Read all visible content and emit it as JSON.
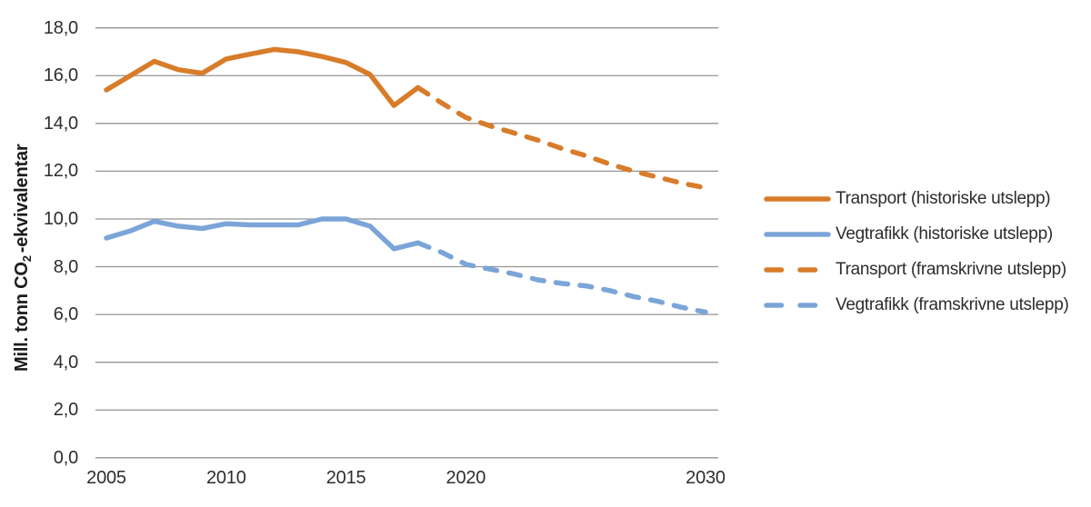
{
  "figure": {
    "background": "#ffffff"
  },
  "colors": {
    "orange": "#d87c2a",
    "blue": "#7ba5d8",
    "grid": "#949494",
    "text": "#2e2d2c"
  },
  "chart_data": {
    "type": "line",
    "title": "",
    "xlabel": "",
    "ylabel": "Mill. tonn CO2 -ekvivalentar",
    "ylabel_parts": {
      "prefix": "Mill. tonn CO",
      "sub": "2",
      "suffix": "-ekvivalentar"
    },
    "ylim": [
      0,
      18
    ],
    "xlim": [
      2005,
      2030
    ],
    "grid": "horizontal",
    "legend_position": "right",
    "decimal_separator": ",",
    "y_ticks": [
      {
        "value": 0,
        "label": "0,0"
      },
      {
        "value": 2,
        "label": "2,0"
      },
      {
        "value": 4,
        "label": "4,0"
      },
      {
        "value": 6,
        "label": "6,0"
      },
      {
        "value": 8,
        "label": "8,0"
      },
      {
        "value": 10,
        "label": "10,0"
      },
      {
        "value": 12,
        "label": "12,0"
      },
      {
        "value": 14,
        "label": "14,0"
      },
      {
        "value": 16,
        "label": "16,0"
      },
      {
        "value": 18,
        "label": "18,0"
      }
    ],
    "x_ticks": [
      {
        "value": 2005,
        "label": "2005"
      },
      {
        "value": 2010,
        "label": "2010"
      },
      {
        "value": 2015,
        "label": "2015"
      },
      {
        "value": 2020,
        "label": "2020"
      },
      {
        "value": 2030,
        "label": "2030"
      }
    ],
    "series": [
      {
        "key": "transport-historical",
        "name": "Transport (historiske utslepp)",
        "color": "#d87c2a",
        "style": "solid",
        "x": [
          2005,
          2006,
          2007,
          2008,
          2009,
          2010,
          2011,
          2012,
          2013,
          2014,
          2015,
          2016,
          2017,
          2018
        ],
        "values": [
          15.4,
          16.0,
          16.6,
          16.25,
          16.1,
          16.7,
          16.9,
          17.1,
          17.0,
          16.8,
          16.55,
          16.05,
          14.75,
          15.5
        ]
      },
      {
        "key": "vegtrafikk-historical",
        "name": "Vegtrafikk (historiske utslepp)",
        "color": "#7ba5d8",
        "style": "solid",
        "x": [
          2005,
          2006,
          2007,
          2008,
          2009,
          2010,
          2011,
          2012,
          2013,
          2014,
          2015,
          2016,
          2017,
          2018
        ],
        "values": [
          9.2,
          9.5,
          9.9,
          9.7,
          9.6,
          9.8,
          9.75,
          9.75,
          9.75,
          10.0,
          10.0,
          9.7,
          8.75,
          9.0
        ]
      },
      {
        "key": "transport-projected",
        "name": "Transport (framskrivne utslepp)",
        "color": "#d87c2a",
        "style": "dashed",
        "x": [
          2018,
          2019,
          2020,
          2021,
          2022,
          2023,
          2024,
          2025,
          2026,
          2027,
          2028,
          2029,
          2030
        ],
        "values": [
          15.5,
          14.85,
          14.25,
          13.9,
          13.6,
          13.3,
          12.95,
          12.65,
          12.3,
          12.0,
          11.75,
          11.5,
          11.3
        ]
      },
      {
        "key": "vegtrafikk-projected",
        "name": "Vegtrafikk (framskrivne utslepp)",
        "color": "#7ba5d8",
        "style": "dashed",
        "x": [
          2018,
          2019,
          2020,
          2021,
          2022,
          2023,
          2024,
          2025,
          2026,
          2027,
          2028,
          2029,
          2030
        ],
        "values": [
          9.0,
          8.6,
          8.1,
          7.9,
          7.7,
          7.45,
          7.3,
          7.2,
          7.0,
          6.75,
          6.55,
          6.3,
          6.1
        ]
      }
    ]
  }
}
